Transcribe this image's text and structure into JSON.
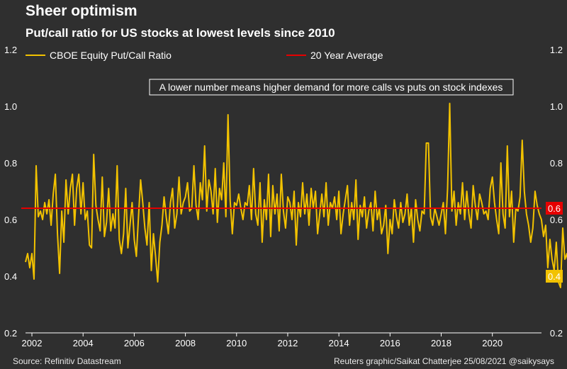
{
  "header": {
    "title": "Sheer optimism",
    "subtitle": "Put/call ratio for US stocks at lowest levels since 2010"
  },
  "footer": {
    "source": "Source: Refinitiv Datastream",
    "credit": "Reuters graphic/Saikat Chatterjee 25/08/2021 @saikysays"
  },
  "colors": {
    "background": "#2f2f2f",
    "series_line": "#f2c200",
    "average_line": "#e60000",
    "axis_text": "#ffffff"
  },
  "chart_data": {
    "type": "line",
    "title": "Put/call ratio for US stocks at lowest levels since 2010",
    "annotation": "A lower number means higher demand for more calls vs puts on stock indexes",
    "xlabel": "",
    "ylabel": "",
    "x_ticks": [
      "2002",
      "2004",
      "2006",
      "2008",
      "2010",
      "2012",
      "2014",
      "2016",
      "2018",
      "2020"
    ],
    "x_tick_values": [
      2002,
      2004,
      2006,
      2008,
      2010,
      2012,
      2014,
      2016,
      2018,
      2020
    ],
    "xlim": [
      2001.75,
      2021.92
    ],
    "ylim": [
      0.2,
      1.2
    ],
    "y_ticks": [
      "0.2",
      "0.4",
      "0.6",
      "0.8",
      "1.0",
      "1.2"
    ],
    "y_tick_values": [
      0.2,
      0.4,
      0.6,
      0.8,
      1.0,
      1.2
    ],
    "legend": [
      "CBOE Equity Put/Call Ratio",
      "20 Year Average"
    ],
    "end_labels": {
      "average": "0.6",
      "latest": "0.4"
    },
    "average_value": 0.64,
    "series": [
      {
        "name": "CBOE Equity Put/Call Ratio",
        "x_start": 2001.75,
        "x_step_months": 1,
        "values": [
          0.45,
          0.48,
          0.43,
          0.48,
          0.39,
          0.79,
          0.61,
          0.63,
          0.6,
          0.66,
          0.62,
          0.67,
          0.58,
          0.69,
          0.76,
          0.55,
          0.41,
          0.63,
          0.52,
          0.74,
          0.62,
          0.71,
          0.76,
          0.58,
          0.71,
          0.76,
          0.62,
          0.73,
          0.6,
          0.63,
          0.51,
          0.5,
          0.83,
          0.65,
          0.6,
          0.56,
          0.75,
          0.54,
          0.59,
          0.71,
          0.56,
          0.62,
          0.57,
          0.79,
          0.53,
          0.48,
          0.55,
          0.71,
          0.5,
          0.58,
          0.66,
          0.53,
          0.47,
          0.61,
          0.74,
          0.66,
          0.57,
          0.51,
          0.66,
          0.42,
          0.55,
          0.47,
          0.38,
          0.52,
          0.58,
          0.68,
          0.61,
          0.55,
          0.66,
          0.71,
          0.57,
          0.62,
          0.75,
          0.62,
          0.66,
          0.68,
          0.73,
          0.63,
          0.64,
          0.79,
          0.65,
          0.6,
          0.73,
          0.67,
          0.86,
          0.63,
          0.74,
          0.7,
          0.62,
          0.78,
          0.59,
          0.71,
          0.67,
          0.8,
          0.61,
          0.97,
          0.67,
          0.55,
          0.66,
          0.65,
          0.69,
          0.64,
          0.6,
          0.66,
          0.65,
          0.72,
          0.6,
          0.78,
          0.62,
          0.58,
          0.73,
          0.52,
          0.67,
          0.6,
          0.76,
          0.54,
          0.72,
          0.62,
          0.69,
          0.56,
          0.76,
          0.63,
          0.57,
          0.68,
          0.66,
          0.6,
          0.7,
          0.51,
          0.66,
          0.61,
          0.73,
          0.62,
          0.69,
          0.58,
          0.71,
          0.64,
          0.7,
          0.55,
          0.62,
          0.69,
          0.61,
          0.73,
          0.58,
          0.66,
          0.64,
          0.68,
          0.6,
          0.7,
          0.55,
          0.62,
          0.67,
          0.72,
          0.58,
          0.66,
          0.6,
          0.74,
          0.53,
          0.65,
          0.61,
          0.68,
          0.57,
          0.63,
          0.66,
          0.56,
          0.7,
          0.6,
          0.64,
          0.55,
          0.58,
          0.65,
          0.48,
          0.6,
          0.55,
          0.67,
          0.61,
          0.57,
          0.66,
          0.59,
          0.62,
          0.69,
          0.58,
          0.64,
          0.52,
          0.67,
          0.6,
          0.56,
          0.63,
          0.62,
          0.87,
          0.87,
          0.61,
          0.58,
          0.64,
          0.61,
          0.58,
          0.62,
          0.66,
          0.55,
          0.71,
          1.01,
          0.63,
          0.7,
          0.58,
          0.66,
          0.62,
          0.73,
          0.6,
          0.7,
          0.62,
          0.57,
          0.72,
          0.65,
          0.6,
          0.69,
          0.66,
          0.62,
          0.63,
          0.6,
          0.71,
          0.75,
          0.66,
          0.6,
          0.55,
          0.8,
          0.62,
          0.57,
          0.86,
          0.61,
          0.7,
          0.52,
          0.64,
          0.63,
          0.68,
          0.88,
          0.7,
          0.62,
          0.58,
          0.52,
          0.57,
          0.7,
          0.65,
          0.62,
          0.6,
          0.54,
          0.58,
          0.43,
          0.53,
          0.46,
          0.42,
          0.52,
          0.38,
          0.36,
          0.57,
          0.46,
          0.48,
          0.41,
          0.61,
          0.4
        ]
      }
    ]
  }
}
